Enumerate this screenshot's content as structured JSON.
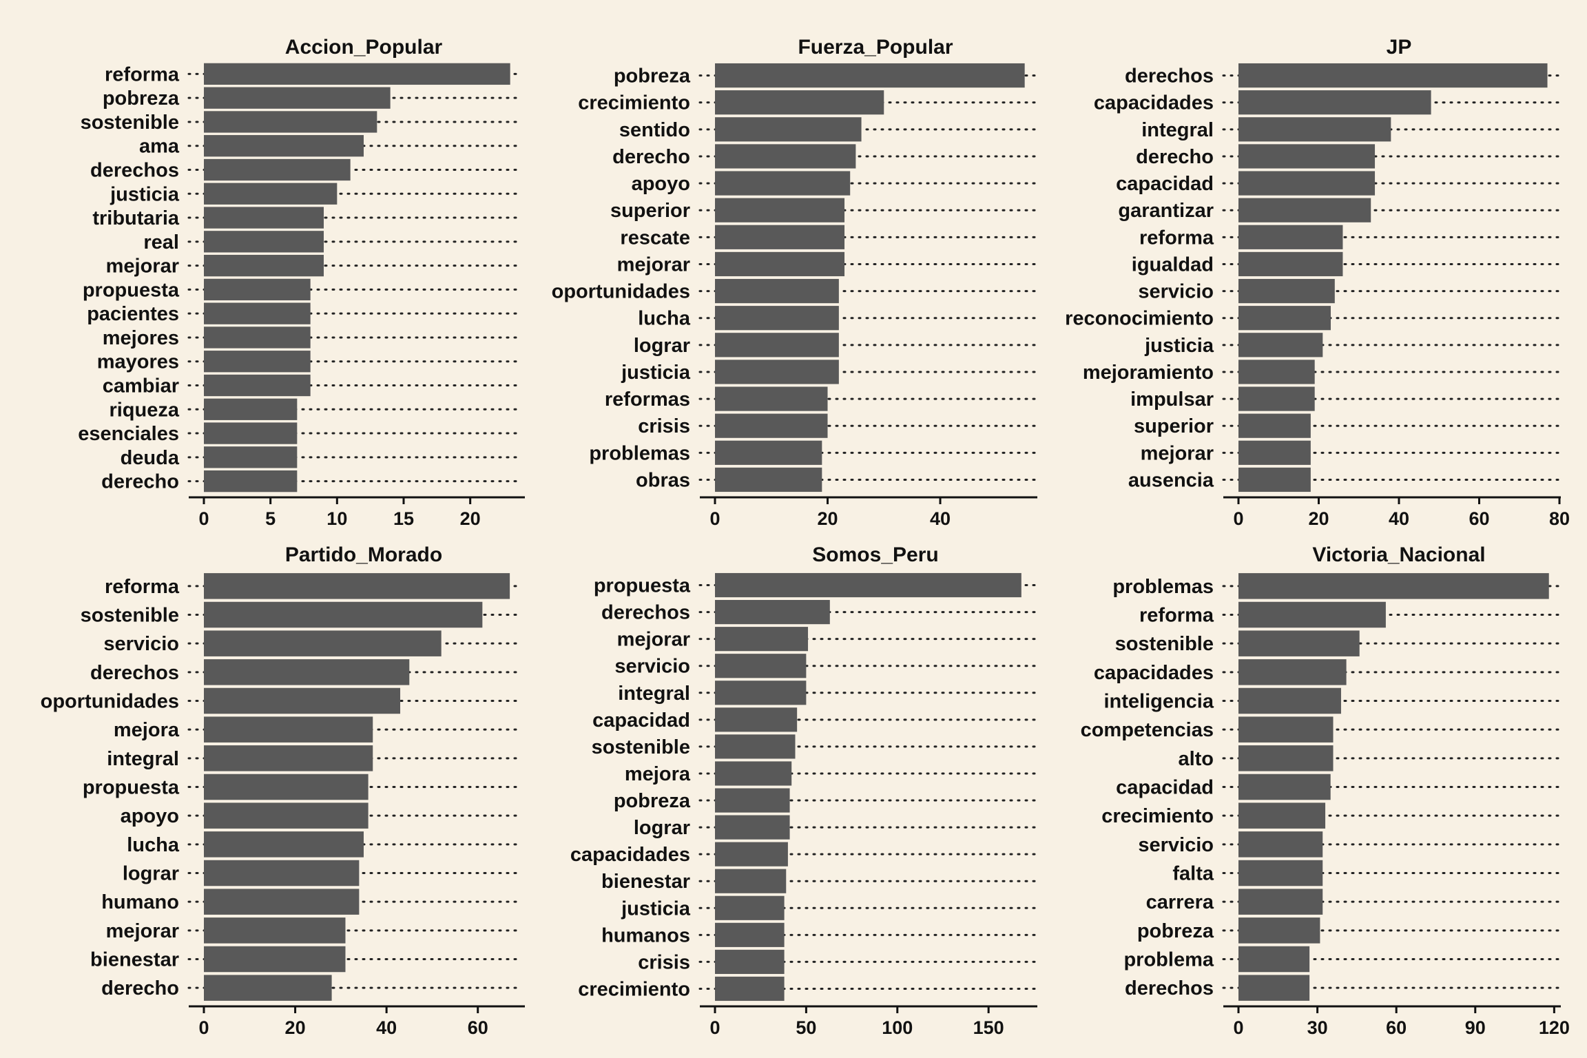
{
  "colors": {
    "background": "#f8f1e4",
    "bar": "#595959",
    "text": "#111111"
  },
  "chart_data": [
    {
      "type": "bar",
      "orientation": "horizontal",
      "title": "Accion_Popular",
      "categories": [
        "reforma",
        "pobreza",
        "sostenible",
        "ama",
        "derechos",
        "justicia",
        "tributaria",
        "real",
        "mejorar",
        "propuesta",
        "pacientes",
        "mejores",
        "mayores",
        "cambiar",
        "riqueza",
        "esenciales",
        "deuda",
        "derecho"
      ],
      "values": [
        23,
        14,
        13,
        12,
        11,
        10,
        9,
        9,
        9,
        8,
        8,
        8,
        8,
        8,
        7,
        7,
        7,
        7
      ],
      "xlim": [
        0,
        24
      ],
      "xticks": [
        0,
        5,
        10,
        15,
        20
      ]
    },
    {
      "type": "bar",
      "orientation": "horizontal",
      "title": "Fuerza_Popular",
      "categories": [
        "pobreza",
        "crecimiento",
        "sentido",
        "derecho",
        "apoyo",
        "superior",
        "rescate",
        "mejorar",
        "oportunidades",
        "lucha",
        "lograr",
        "justicia",
        "reformas",
        "crisis",
        "problemas",
        "obras"
      ],
      "values": [
        55,
        30,
        26,
        25,
        24,
        23,
        23,
        23,
        22,
        22,
        22,
        22,
        20,
        20,
        19,
        19
      ],
      "xlim": [
        0,
        57
      ],
      "xticks": [
        0,
        20,
        40
      ]
    },
    {
      "type": "bar",
      "orientation": "horizontal",
      "title": "JP",
      "categories": [
        "derechos",
        "capacidades",
        "integral",
        "derecho",
        "capacidad",
        "garantizar",
        "reforma",
        "igualdad",
        "servicio",
        "reconocimiento",
        "justicia",
        "mejoramiento",
        "impulsar",
        "superior",
        "mejorar",
        "ausencia"
      ],
      "values": [
        77,
        48,
        38,
        34,
        34,
        33,
        26,
        26,
        24,
        23,
        21,
        19,
        19,
        18,
        18,
        18
      ],
      "xlim": [
        0,
        80
      ],
      "xticks": [
        0,
        20,
        40,
        60,
        80
      ]
    },
    {
      "type": "bar",
      "orientation": "horizontal",
      "title": "Partido_Morado",
      "categories": [
        "reforma",
        "sostenible",
        "servicio",
        "derechos",
        "oportunidades",
        "mejora",
        "integral",
        "propuesta",
        "apoyo",
        "lucha",
        "lograr",
        "humano",
        "mejorar",
        "bienestar",
        "derecho"
      ],
      "values": [
        67,
        61,
        52,
        45,
        43,
        37,
        37,
        36,
        36,
        35,
        34,
        34,
        31,
        31,
        28
      ],
      "xlim": [
        0,
        70
      ],
      "xticks": [
        0,
        20,
        40,
        60
      ]
    },
    {
      "type": "bar",
      "orientation": "horizontal",
      "title": "Somos_Peru",
      "categories": [
        "propuesta",
        "derechos",
        "mejorar",
        "servicio",
        "integral",
        "capacidad",
        "sostenible",
        "mejora",
        "pobreza",
        "lograr",
        "capacidades",
        "bienestar",
        "justicia",
        "humanos",
        "crisis",
        "crecimiento"
      ],
      "values": [
        168,
        63,
        51,
        50,
        50,
        45,
        44,
        42,
        41,
        41,
        40,
        39,
        38,
        38,
        38,
        38
      ],
      "xlim": [
        0,
        176
      ],
      "xticks": [
        0,
        50,
        100,
        150
      ]
    },
    {
      "type": "bar",
      "orientation": "horizontal",
      "title": "Victoria_Nacional",
      "categories": [
        "problemas",
        "reforma",
        "sostenible",
        "capacidades",
        "inteligencia",
        "competencias",
        "alto",
        "capacidad",
        "crecimiento",
        "servicio",
        "falta",
        "carrera",
        "pobreza",
        "problema",
        "derechos"
      ],
      "values": [
        118,
        56,
        46,
        41,
        39,
        36,
        36,
        35,
        33,
        32,
        32,
        32,
        31,
        27,
        27
      ],
      "xlim": [
        0,
        122
      ],
      "xticks": [
        0,
        30,
        60,
        90,
        120
      ]
    }
  ]
}
